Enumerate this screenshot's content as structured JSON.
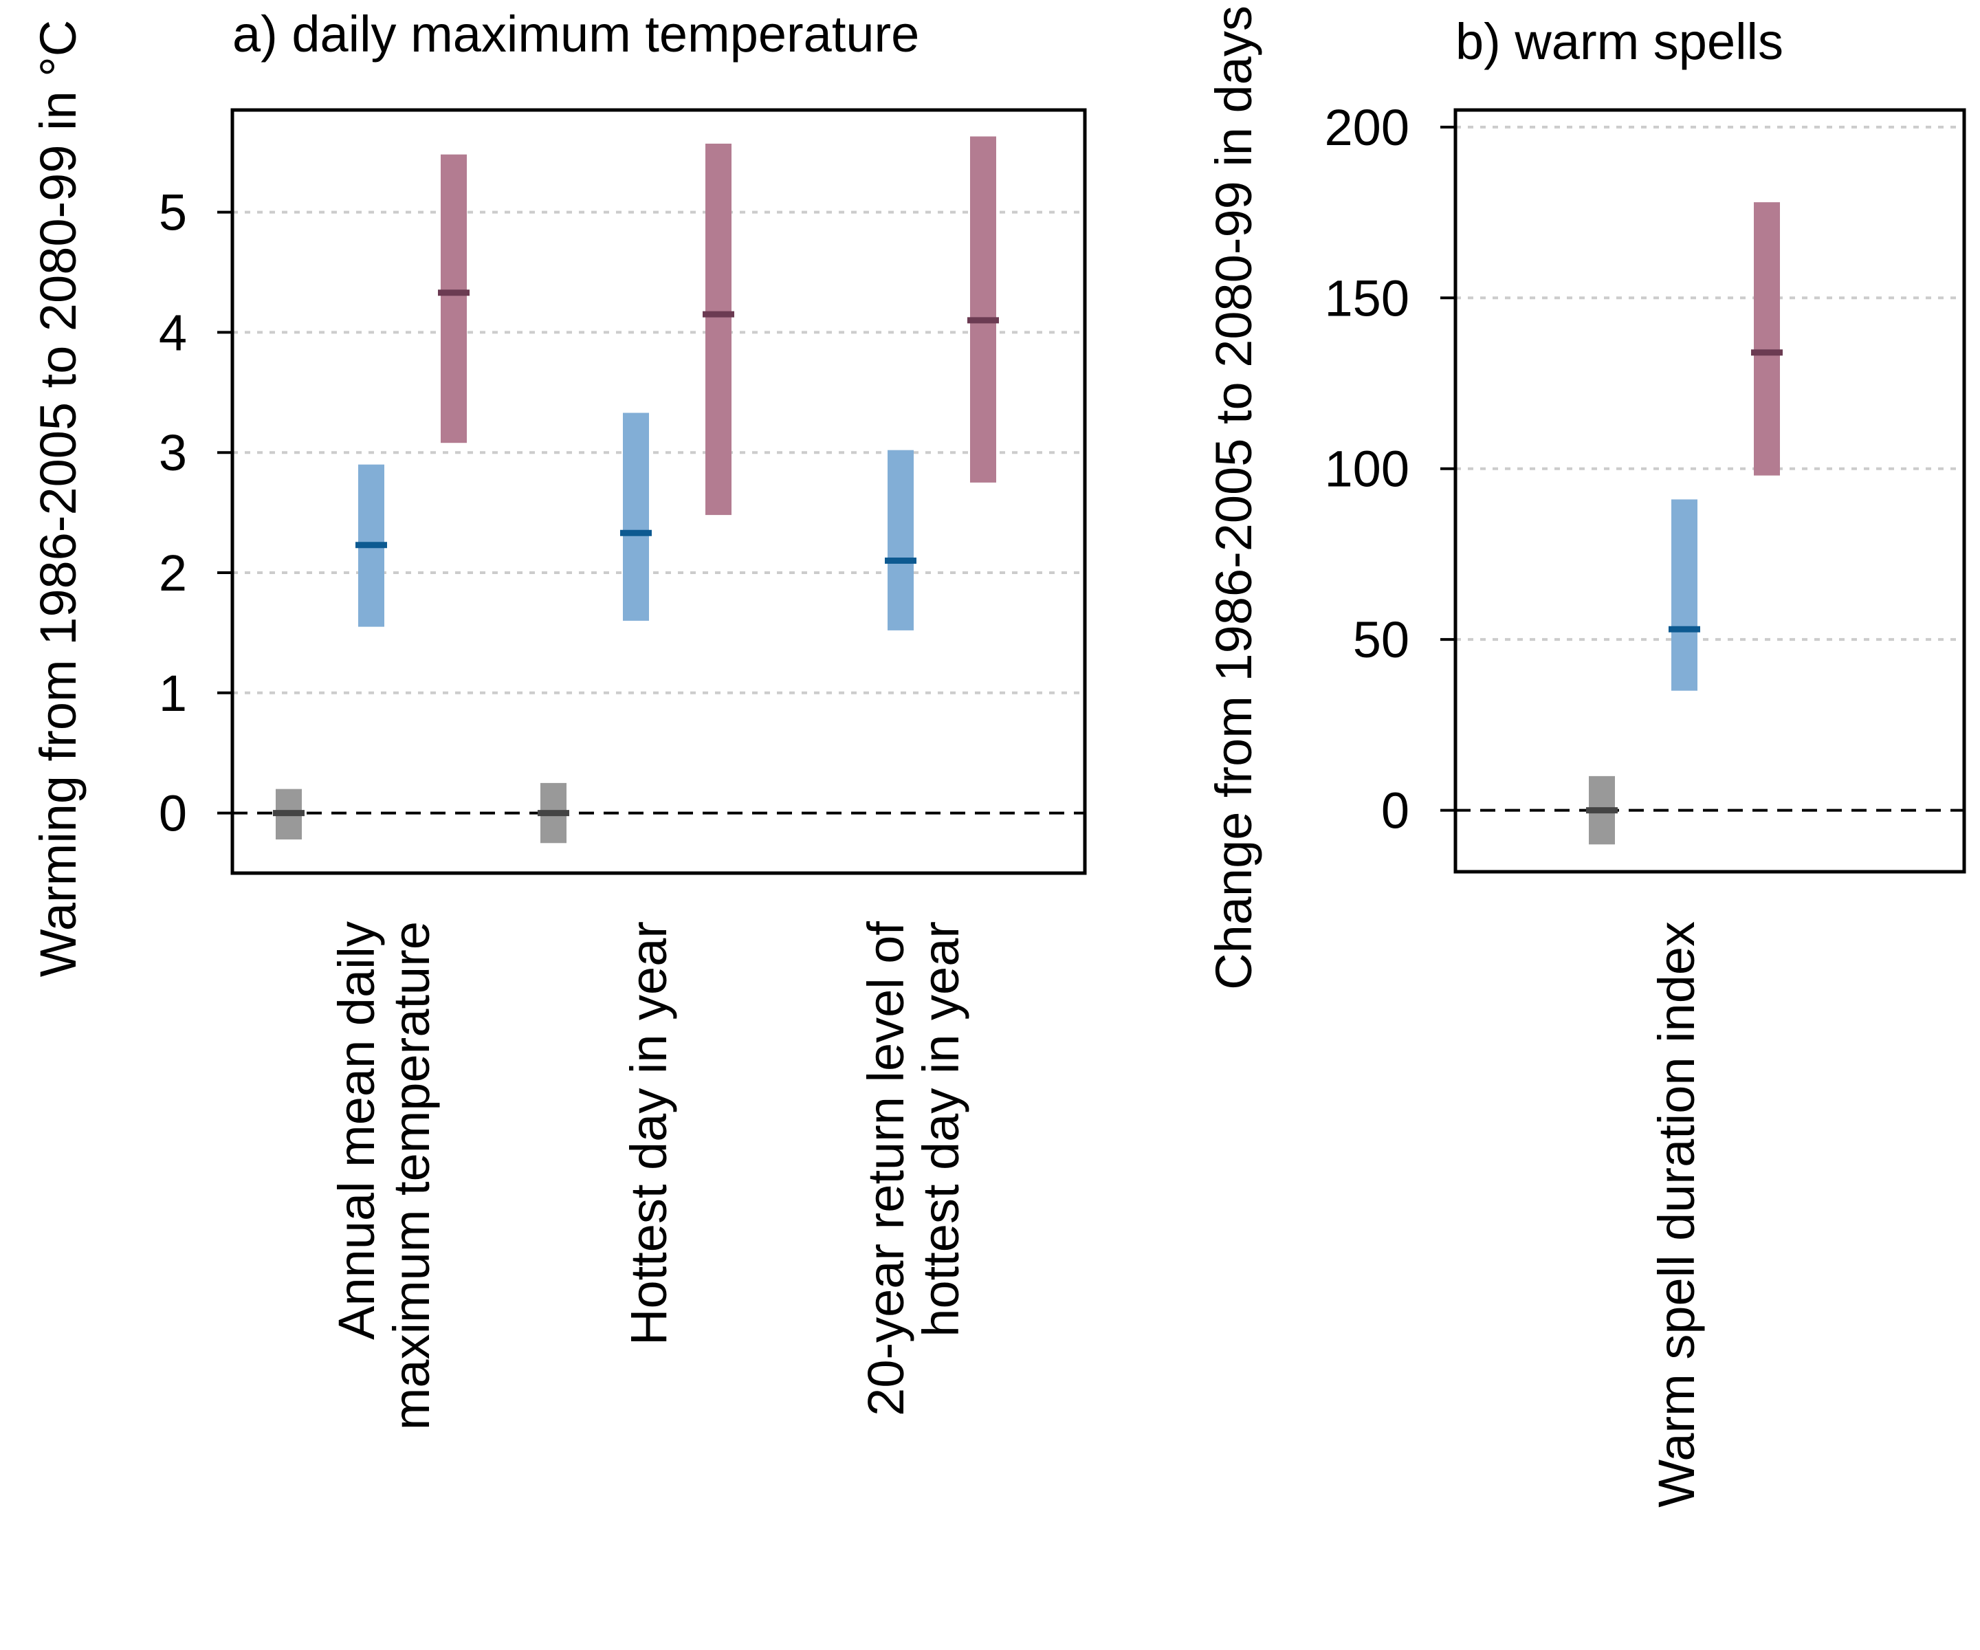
{
  "chart_data": [
    {
      "panel": "a",
      "type": "bar",
      "title": "a) daily maximum temperature",
      "ylabel": "Warming from 1986-2005 to 2080-99 in  °C",
      "ylim": [
        -0.5,
        5.85
      ],
      "yticks": [
        0,
        1,
        2,
        3,
        4,
        5
      ],
      "grid": "horizontal dotted",
      "reference_line": 0,
      "categories": [
        [
          "Annual mean daily",
          "maximum temperature"
        ],
        [
          "Hottest day in year"
        ],
        [
          "20-year return level of",
          "hottest day in year"
        ]
      ],
      "series": [
        {
          "color": "#999999",
          "median_color": "#444444",
          "ranges": [
            {
              "low": -0.22,
              "median": 0.0,
              "high": 0.2
            },
            {
              "low": -0.25,
              "median": 0.0,
              "high": 0.25
            },
            null
          ]
        },
        {
          "color": "#82aed6",
          "median_color": "#0d5a91",
          "ranges": [
            {
              "low": 1.55,
              "median": 2.23,
              "high": 2.9
            },
            {
              "low": 1.6,
              "median": 2.33,
              "high": 3.33
            },
            {
              "low": 1.52,
              "median": 2.1,
              "high": 3.02
            }
          ]
        },
        {
          "color": "#b37c91",
          "median_color": "#6b3b52",
          "ranges": [
            {
              "low": 3.08,
              "median": 4.33,
              "high": 5.48
            },
            {
              "low": 2.48,
              "median": 4.15,
              "high": 5.57
            },
            {
              "low": 2.75,
              "median": 4.1,
              "high": 5.63
            }
          ]
        }
      ]
    },
    {
      "panel": "b",
      "type": "bar",
      "title": "b) warm spells",
      "ylabel": "Change from 1986-2005 to 2080-99 in days",
      "ylim": [
        -18,
        205
      ],
      "yticks": [
        0,
        50,
        100,
        150,
        200
      ],
      "grid": "horizontal dotted",
      "reference_line": 0,
      "categories": [
        [
          "Warm spell duration index"
        ]
      ],
      "series": [
        {
          "color": "#999999",
          "median_color": "#444444",
          "ranges": [
            {
              "low": -10,
              "median": 0,
              "high": 10
            }
          ]
        },
        {
          "color": "#82aed6",
          "median_color": "#0d5a91",
          "ranges": [
            {
              "low": 35,
              "median": 53,
              "high": 91
            }
          ]
        },
        {
          "color": "#b37c91",
          "median_color": "#6b3b52",
          "ranges": [
            {
              "low": 98,
              "median": 134,
              "high": 178
            }
          ]
        }
      ]
    }
  ]
}
